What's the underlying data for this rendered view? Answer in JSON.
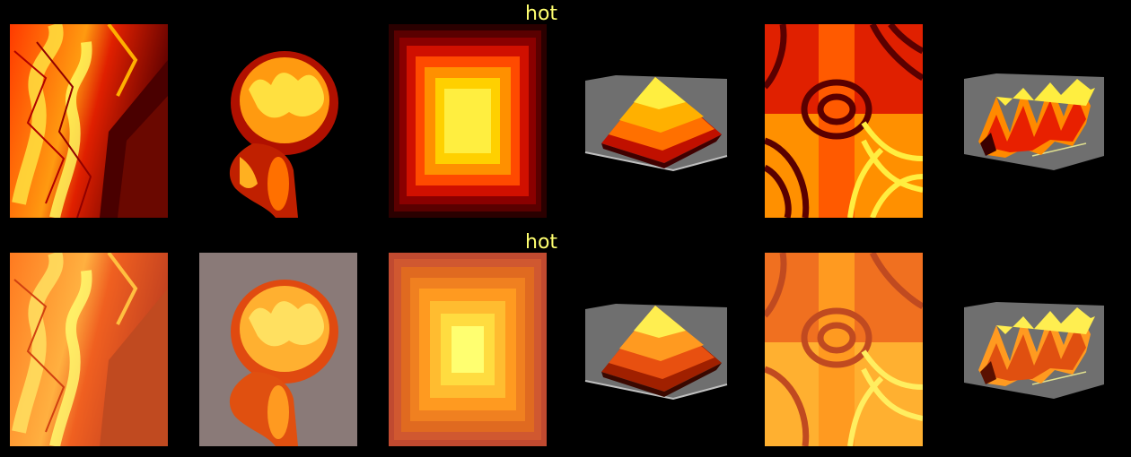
{
  "colormap_name": "hot",
  "rows": [
    {
      "id": "original",
      "title": "hot"
    },
    {
      "id": "washed",
      "title": "hot"
    }
  ],
  "panels": [
    {
      "id": "terrain",
      "icon": "terrain-image"
    },
    {
      "id": "mri",
      "icon": "mri-head-image"
    },
    {
      "id": "squares",
      "icon": "concentric-squares-image"
    },
    {
      "id": "pyramid",
      "icon": "3d-pyramid-surface"
    },
    {
      "id": "interference",
      "icon": "interference-pattern-image"
    },
    {
      "id": "surface",
      "icon": "3d-ripple-surface"
    }
  ],
  "colors": {
    "background": "#000000",
    "title": "#ffff70",
    "axes_pane": "#6f6f6f",
    "hot_dark": "#3a0000",
    "hot_red": "#e81400",
    "hot_orange": "#ff8a00",
    "hot_yellow": "#ffff40"
  }
}
